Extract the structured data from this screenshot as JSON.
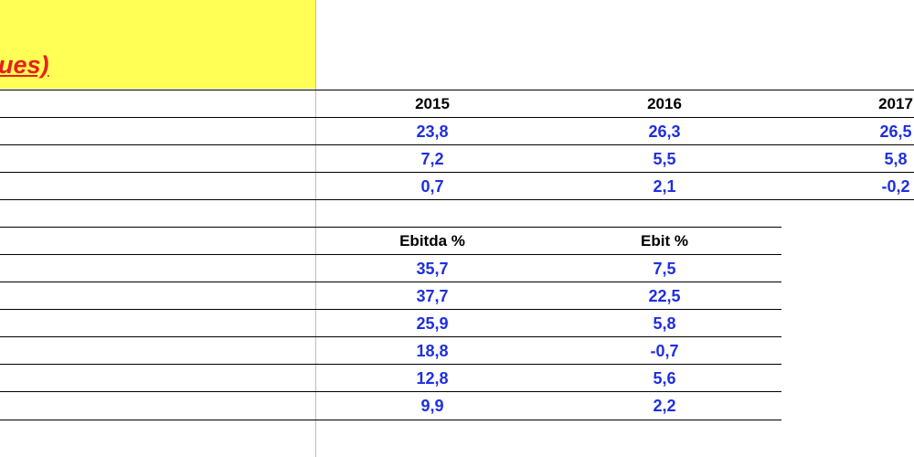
{
  "header": {
    "title_fragment": "ues)",
    "bg_color": "#ffff55",
    "text_color": "#e8201a"
  },
  "table1": {
    "years": [
      "2015",
      "2016",
      "2017"
    ],
    "rows": [
      [
        "23,8",
        "26,3",
        "26,5"
      ],
      [
        "7,2",
        "5,5",
        "5,8"
      ],
      [
        "0,7",
        "2,1",
        "-0,2"
      ]
    ]
  },
  "table2": {
    "headers": [
      "Ebitda %",
      "Ebit %"
    ],
    "rows": [
      [
        "35,7",
        "7,5"
      ],
      [
        "37,7",
        "22,5"
      ],
      [
        "25,9",
        "5,8"
      ],
      [
        "18,8",
        "-0,7"
      ],
      [
        "12,8",
        "5,6"
      ],
      [
        "9,9",
        "2,2"
      ]
    ]
  },
  "colors": {
    "value": "#1f2fe0",
    "header": "#000000"
  }
}
